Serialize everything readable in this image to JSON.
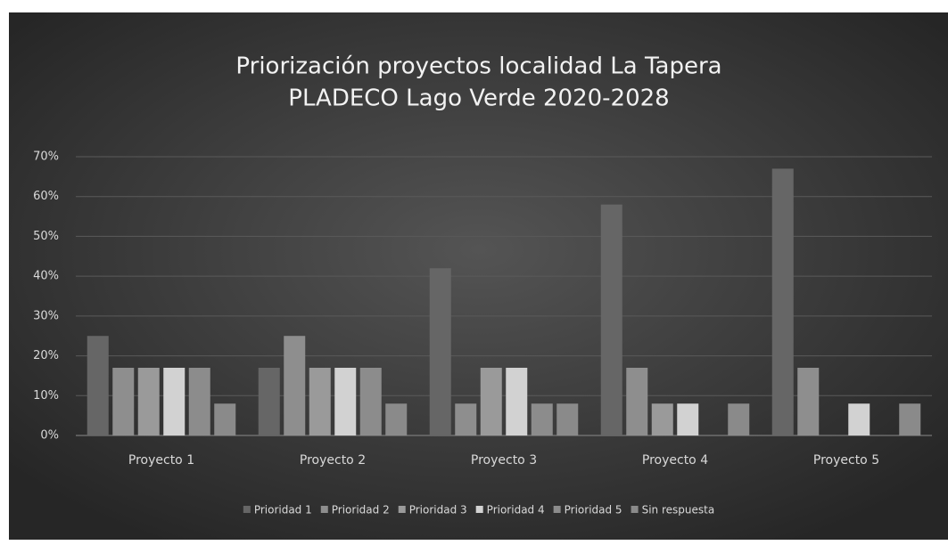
{
  "chart_data": {
    "type": "bar",
    "title": [
      "Priorización proyectos localidad La Tapera",
      "PLADECO Lago Verde 2020-2028"
    ],
    "categories": [
      "Proyecto 1",
      "Proyecto 2",
      "Proyecto 3",
      "Proyecto 4",
      "Proyecto 5"
    ],
    "series": [
      {
        "name": "Prioridad 1",
        "color": "#666666",
        "values": [
          25,
          17,
          42,
          58,
          67
        ]
      },
      {
        "name": "Prioridad 2",
        "color": "#8e8e8e",
        "values": [
          17,
          25,
          8,
          17,
          17
        ]
      },
      {
        "name": "Prioridad 3",
        "color": "#9a9a9a",
        "values": [
          17,
          17,
          17,
          8,
          0
        ]
      },
      {
        "name": "Prioridad 4",
        "color": "#d2d2d2",
        "values": [
          17,
          17,
          17,
          8,
          8
        ]
      },
      {
        "name": "Prioridad 5",
        "color": "#8c8c8c",
        "values": [
          17,
          17,
          8,
          0,
          0
        ]
      },
      {
        "name": "Sin respuesta",
        "color": "#8a8a8a",
        "values": [
          8,
          8,
          8,
          8,
          8
        ]
      }
    ],
    "ylim": [
      0,
      70
    ],
    "yticks": [
      {
        "value": 0,
        "label": "0%"
      },
      {
        "value": 10,
        "label": "10%"
      },
      {
        "value": 20,
        "label": "20%"
      },
      {
        "value": 30,
        "label": "30%"
      },
      {
        "value": 40,
        "label": "40%"
      },
      {
        "value": 50,
        "label": "50%"
      },
      {
        "value": 60,
        "label": "60%"
      },
      {
        "value": 70,
        "label": "70%"
      }
    ],
    "grid": true,
    "legend": "bottom"
  }
}
